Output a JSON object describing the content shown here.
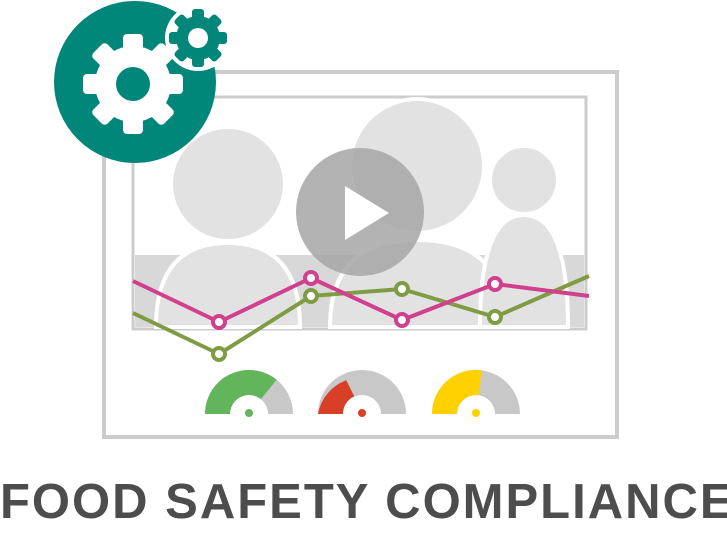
{
  "caption": "FOOD SAFETY COMPLIANCE",
  "colors": {
    "teal": "#00877A",
    "frame": "#CCCCCC",
    "person": "#E2E2E2",
    "band": "#D8D8D8",
    "play_circle": "#A6A6A6",
    "pink_line": "#D0408C",
    "green_line": "#7F9C45",
    "gauge_track": "#C8C8C8",
    "gauge_green": "#63B55C",
    "gauge_red": "#D93F26",
    "gauge_yellow": "#FFD100",
    "text": "#4D4D4D"
  },
  "icons": [
    "large-gear-icon",
    "small-gear-icon",
    "play-icon"
  ],
  "gauges": [
    {
      "name": "gauge-green",
      "color_key": "gauge_green",
      "level": 0.6
    },
    {
      "name": "gauge-red",
      "color_key": "gauge_red",
      "level": 0.25
    },
    {
      "name": "gauge-yellow",
      "color_key": "gauge_yellow",
      "level": 0.45
    }
  ]
}
